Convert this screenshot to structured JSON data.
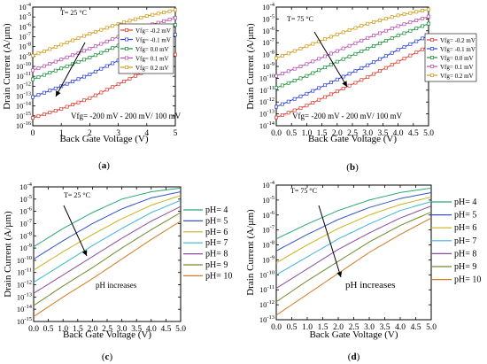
{
  "charts": [
    {
      "id": "a",
      "type": "line",
      "ylabel": "Drain Current (A/µm)",
      "xlabel": "Back Gate Voltage (V)",
      "xlim": [
        0,
        5
      ],
      "xticks": [
        "0",
        "1",
        "2",
        "3",
        "4",
        "5"
      ],
      "xtick_values": [
        0,
        1,
        2,
        3,
        4,
        5
      ],
      "ylim_exp": [
        -16,
        -4
      ],
      "yticks_exp": [
        -16,
        -15,
        -14,
        -13,
        -12,
        -11,
        -10,
        -9,
        -8,
        -7,
        -6,
        -5,
        -4
      ],
      "temp_label": "T= 25 °C",
      "note": "Vfg= -200 mV - 200 mV/ 100 mV",
      "caption": "(a)",
      "marker": "square",
      "legend": [
        "Vfg= -0.2 mV",
        "Vfg= -0.1 mV",
        "Vfg= 0.0 mV",
        "Vfg= 0.1 mV",
        "Vfg= 0.2 mV"
      ],
      "series": [
        {
          "name": "Vfg= -0.2 mV",
          "color": "#e23b2e",
          "x": [
            0,
            1,
            2,
            3,
            4,
            5
          ],
          "y_exp": [
            -15.2,
            -14.3,
            -13.2,
            -11.8,
            -10.4,
            -8.8
          ]
        },
        {
          "name": "Vfg= -0.1 mV",
          "color": "#2a3fd4",
          "x": [
            0,
            1,
            2,
            3,
            4,
            5
          ],
          "y_exp": [
            -13.1,
            -12.0,
            -10.8,
            -9.4,
            -8.0,
            -6.8
          ]
        },
        {
          "name": "Vfg= 0.0 mV",
          "color": "#1c8f3a",
          "x": [
            0,
            1,
            2,
            3,
            4,
            5
          ],
          "y_exp": [
            -11.3,
            -10.2,
            -9.1,
            -7.9,
            -6.8,
            -5.8
          ]
        },
        {
          "name": "Vfg= 0.1 mV",
          "color": "#b64fb0",
          "x": [
            0,
            1,
            2,
            3,
            4,
            5
          ],
          "y_exp": [
            -10.4,
            -9.3,
            -8.2,
            -7.0,
            -5.9,
            -5.1
          ]
        },
        {
          "name": "Vfg= 0.2 mV",
          "color": "#cf9a18",
          "x": [
            0,
            1,
            2,
            3,
            4,
            5
          ],
          "y_exp": [
            -8.9,
            -7.8,
            -6.7,
            -5.7,
            -4.9,
            -4.3
          ]
        }
      ]
    },
    {
      "id": "b",
      "type": "line",
      "ylabel": "Drain Current (A/µm)",
      "xlabel": "Back Gate Voltage (V)",
      "xlim": [
        0,
        5
      ],
      "xticks": [
        "0.0",
        "0.5",
        "1.0",
        "1.5",
        "2.0",
        "2.5",
        "3.0",
        "3.5",
        "4.0",
        "4.5",
        "5.0"
      ],
      "xtick_values": [
        0,
        0.5,
        1,
        1.5,
        2,
        2.5,
        3,
        3.5,
        4,
        4.5,
        5
      ],
      "ylim_exp": [
        -14,
        -4
      ],
      "yticks_exp": [
        -14,
        -13,
        -12,
        -11,
        -10,
        -9,
        -8,
        -7,
        -6,
        -5,
        -4
      ],
      "temp_label": "T= 75 °C",
      "note": "Vfg= -200 mV - 200 mV/ 100 mV",
      "caption": "(b)",
      "marker": "square",
      "legend": [
        "Vfg= -0.2 mV",
        "Vfg= -0.1 mV",
        "Vfg= 0.0 mV",
        "Vfg= 0.1 mV",
        "Vfg= 0.2 mV"
      ],
      "series": [
        {
          "name": "Vfg= -0.2 mV",
          "color": "#e23b2e",
          "x": [
            0,
            1,
            2,
            3,
            4,
            5
          ],
          "y_exp": [
            -13.3,
            -12.3,
            -11.1,
            -9.9,
            -8.6,
            -7.3
          ]
        },
        {
          "name": "Vfg= -0.1 mV",
          "color": "#2a3fd4",
          "x": [
            0,
            1,
            2,
            3,
            4,
            5
          ],
          "y_exp": [
            -12.4,
            -11.3,
            -10.1,
            -8.9,
            -7.6,
            -6.4
          ]
        },
        {
          "name": "Vfg= 0.0 mV",
          "color": "#1c8f3a",
          "x": [
            0,
            1,
            2,
            3,
            4,
            5
          ],
          "y_exp": [
            -10.8,
            -9.8,
            -8.6,
            -7.5,
            -6.4,
            -5.4
          ]
        },
        {
          "name": "Vfg= 0.1 mV",
          "color": "#b64fb0",
          "x": [
            0,
            1,
            2,
            3,
            4,
            5
          ],
          "y_exp": [
            -9.8,
            -8.8,
            -7.7,
            -6.6,
            -5.6,
            -4.8
          ]
        },
        {
          "name": "Vfg= 0.2 mV",
          "color": "#cf9a18",
          "x": [
            0,
            1,
            2,
            3,
            4,
            5
          ],
          "y_exp": [
            -8.3,
            -7.3,
            -6.3,
            -5.4,
            -4.7,
            -4.2
          ]
        }
      ]
    },
    {
      "id": "c",
      "type": "line",
      "ylabel": "Drain Current (A/µm)",
      "xlabel": "Back Gate Voltage (V)",
      "xlim": [
        0,
        5
      ],
      "xticks": [
        "0.0",
        "0.5",
        "1.0",
        "1.5",
        "2.0",
        "2.5",
        "3.0",
        "3.5",
        "4.0",
        "4.5",
        "5.0"
      ],
      "xtick_values": [
        0,
        0.5,
        1,
        1.5,
        2,
        2.5,
        3,
        3.5,
        4,
        4.5,
        5
      ],
      "ylim_exp": [
        -15,
        -4
      ],
      "yticks_exp": [
        -15,
        -14,
        -13,
        -12,
        -11,
        -10,
        -9,
        -8,
        -7,
        -6,
        -5,
        -4
      ],
      "temp_label": "T= 25 °C",
      "note": "pH increases",
      "caption": "(c)",
      "marker": "none",
      "legend": [
        "pH= 4",
        "pH= 5",
        "pH= 6",
        "pH= 7",
        "pH= 8",
        "pH= 9",
        "pH= 10"
      ],
      "series": [
        {
          "name": "pH= 4",
          "color": "#2aa876",
          "x": [
            0,
            1,
            2,
            3,
            4,
            5
          ],
          "y_exp": [
            -8.9,
            -7.4,
            -6.1,
            -5.0,
            -4.4,
            -4.1
          ]
        },
        {
          "name": "pH= 5",
          "color": "#3554c8",
          "x": [
            0,
            1,
            2,
            3,
            4,
            5
          ],
          "y_exp": [
            -9.9,
            -8.4,
            -7.0,
            -5.8,
            -4.9,
            -4.4
          ]
        },
        {
          "name": "pH= 6",
          "color": "#c9b21e",
          "x": [
            0,
            1,
            2,
            3,
            4,
            5
          ],
          "y_exp": [
            -10.8,
            -9.3,
            -7.9,
            -6.6,
            -5.5,
            -4.7
          ]
        },
        {
          "name": "pH= 7",
          "color": "#3fb3d8",
          "x": [
            0,
            1,
            2,
            3,
            4,
            5
          ],
          "y_exp": [
            -11.8,
            -10.3,
            -8.8,
            -7.4,
            -6.1,
            -5.1
          ]
        },
        {
          "name": "pH= 8",
          "color": "#8a4f9e",
          "x": [
            0,
            1,
            2,
            3,
            4,
            5
          ],
          "y_exp": [
            -12.7,
            -11.2,
            -9.7,
            -8.2,
            -6.8,
            -5.6
          ]
        },
        {
          "name": "pH= 9",
          "color": "#6f8a2c",
          "x": [
            0,
            1,
            2,
            3,
            4,
            5
          ],
          "y_exp": [
            -13.7,
            -12.1,
            -10.6,
            -9.0,
            -7.5,
            -6.1
          ]
        },
        {
          "name": "pH= 10",
          "color": "#d47a22",
          "x": [
            0,
            1,
            2,
            3,
            4,
            5
          ],
          "y_exp": [
            -14.6,
            -13.0,
            -11.5,
            -9.9,
            -8.3,
            -6.8
          ]
        }
      ]
    },
    {
      "id": "d",
      "type": "line",
      "ylabel": "Drain Current (A/µm)",
      "xlabel": "Back Gate Voltage (V)",
      "xlim": [
        0,
        5
      ],
      "xticks": [
        "0.0",
        "0.5",
        "1.0",
        "1.5",
        "2.0",
        "2.5",
        "3.0",
        "3.5",
        "4.0",
        "4.5",
        "5.0"
      ],
      "xtick_values": [
        0,
        0.5,
        1,
        1.5,
        2,
        2.5,
        3,
        3.5,
        4,
        4.5,
        5
      ],
      "ylim_exp": [
        -13,
        -4
      ],
      "yticks_exp": [
        -13,
        -12,
        -11,
        -10,
        -9,
        -8,
        -7,
        -6,
        -5,
        -4
      ],
      "temp_label": "T= 75 °C",
      "note": "pH increases",
      "caption": "(d)",
      "marker": "none",
      "legend": [
        "pH= 4",
        "pH= 5",
        "pH= 6",
        "pH= 7",
        "pH= 8",
        "pH= 9",
        "pH= 10"
      ],
      "series": [
        {
          "name": "pH= 4",
          "color": "#2aa876",
          "x": [
            0,
            1,
            2,
            3,
            4,
            5
          ],
          "y_exp": [
            -7.6,
            -6.6,
            -5.7,
            -5.0,
            -4.5,
            -4.2
          ]
        },
        {
          "name": "pH= 5",
          "color": "#3554c8",
          "x": [
            0,
            1,
            2,
            3,
            4,
            5
          ],
          "y_exp": [
            -8.4,
            -7.3,
            -6.3,
            -5.5,
            -4.9,
            -4.5
          ]
        },
        {
          "name": "pH= 6",
          "color": "#c9b21e",
          "x": [
            0,
            1,
            2,
            3,
            4,
            5
          ],
          "y_exp": [
            -9.2,
            -8.0,
            -6.9,
            -6.0,
            -5.3,
            -4.8
          ]
        },
        {
          "name": "pH= 7",
          "color": "#3fb3d8",
          "x": [
            0,
            1,
            2,
            3,
            4,
            5
          ],
          "y_exp": [
            -10.0,
            -8.8,
            -7.6,
            -6.6,
            -5.7,
            -5.1
          ]
        },
        {
          "name": "pH= 8",
          "color": "#8a4f9e",
          "x": [
            0,
            1,
            2,
            3,
            4,
            5
          ],
          "y_exp": [
            -10.9,
            -9.6,
            -8.3,
            -7.2,
            -6.2,
            -5.4
          ]
        },
        {
          "name": "pH= 9",
          "color": "#6f8a2c",
          "x": [
            0,
            1,
            2,
            3,
            4,
            5
          ],
          "y_exp": [
            -11.8,
            -10.4,
            -9.1,
            -7.8,
            -6.7,
            -5.8
          ]
        },
        {
          "name": "pH= 10",
          "color": "#d47a22",
          "x": [
            0,
            1,
            2,
            3,
            4,
            5
          ],
          "y_exp": [
            -12.7,
            -11.3,
            -9.9,
            -8.5,
            -7.3,
            -6.2
          ]
        }
      ]
    }
  ]
}
